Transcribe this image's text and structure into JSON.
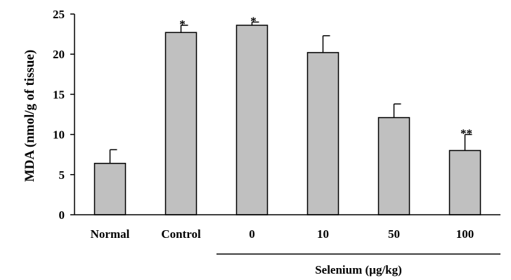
{
  "chart_data": {
    "type": "bar",
    "title": "",
    "xlabel": "",
    "ylabel": "MDA (nmol/g of tissue)",
    "ylim": [
      0,
      25
    ],
    "yticks": [
      "0",
      "5",
      "10",
      "15",
      "20",
      "25"
    ],
    "grid": false,
    "categories": [
      "Normal",
      "Control",
      "0",
      "10",
      "50",
      "100"
    ],
    "values": [
      6.4,
      22.7,
      23.6,
      20.2,
      12.1,
      8.0
    ],
    "errors": [
      1.7,
      0.9,
      0.4,
      2.1,
      1.7,
      2.0
    ],
    "annotations": [
      "",
      "*",
      "*",
      "",
      "",
      "**"
    ],
    "group": {
      "label": "Selenium (µg/kg)",
      "categories": [
        "0",
        "10",
        "50",
        "100"
      ]
    },
    "colors": {
      "bar_fill": "#c0c0c0",
      "bar_stroke": "#000000",
      "axis": "#000000"
    }
  }
}
